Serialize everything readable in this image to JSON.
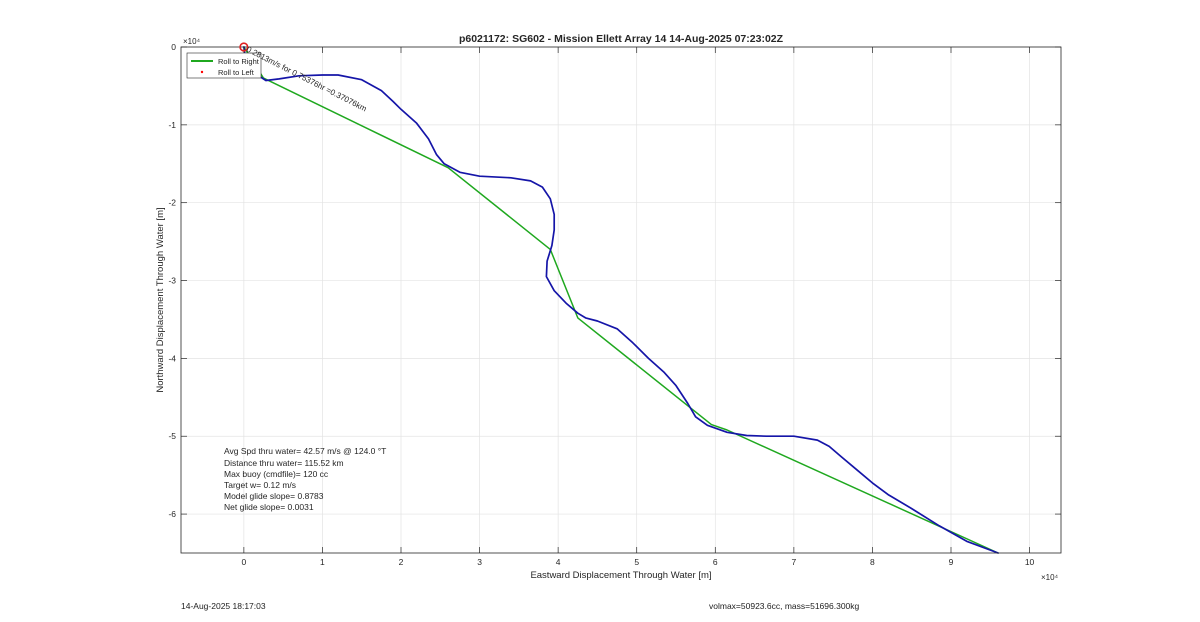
{
  "chart_data": {
    "type": "line",
    "title": "p6021172: SG602 - Mission Ellett Array 14 14-Aug-2025 07:23:02Z",
    "xlabel": "Eastward Displacement Through Water [m]",
    "ylabel": "Northward Displacement Through Water [m]",
    "x_exponent_label": "×10⁴",
    "y_exponent_label": "×10⁴",
    "xlim": [
      -8000,
      104000
    ],
    "ylim": [
      -65000,
      0
    ],
    "x_ticks": [
      0,
      10000,
      20000,
      30000,
      40000,
      50000,
      60000,
      70000,
      80000,
      90000,
      100000
    ],
    "x_tick_labels": [
      "0",
      "1",
      "2",
      "3",
      "4",
      "5",
      "6",
      "7",
      "8",
      "9",
      "10"
    ],
    "y_ticks": [
      0,
      -10000,
      -20000,
      -30000,
      -40000,
      -50000,
      -60000
    ],
    "y_tick_labels": [
      "0",
      "-1",
      "-2",
      "-3",
      "-4",
      "-5",
      "-6"
    ],
    "grid": true,
    "legend_placement": "top-left",
    "legend": [
      {
        "label": "Roll to Right",
        "color": "#1fa81f",
        "style": "line"
      },
      {
        "label": "Roll to Left",
        "color": "#ff0000",
        "style": "dot"
      }
    ],
    "series": [
      {
        "name": "Roll to Right",
        "color": "#1fa81f",
        "points": [
          [
            0,
            0
          ],
          [
            2500,
            -4000
          ],
          [
            26000,
            -15500
          ],
          [
            39000,
            -26000
          ],
          [
            42500,
            -34800
          ],
          [
            59500,
            -48500
          ],
          [
            61500,
            -49200
          ],
          [
            96000,
            -65000
          ]
        ]
      },
      {
        "color": "#1515a8",
        "points": [
          [
            0,
            0
          ],
          [
            200,
            -1500
          ],
          [
            1000,
            -3100
          ],
          [
            2800,
            -4300
          ],
          [
            4500,
            -4100
          ],
          [
            7000,
            -3700
          ],
          [
            10000,
            -3600
          ],
          [
            12000,
            -3600
          ],
          [
            15000,
            -4200
          ],
          [
            17500,
            -5600
          ],
          [
            19000,
            -7000
          ],
          [
            20000,
            -8000
          ],
          [
            22000,
            -9800
          ],
          [
            23500,
            -11800
          ],
          [
            24500,
            -13800
          ],
          [
            25500,
            -15000
          ],
          [
            27500,
            -16100
          ],
          [
            30000,
            -16600
          ],
          [
            34000,
            -16800
          ],
          [
            36500,
            -17200
          ],
          [
            38000,
            -18000
          ],
          [
            39000,
            -19500
          ],
          [
            39500,
            -21500
          ],
          [
            39500,
            -23500
          ],
          [
            39200,
            -25500
          ],
          [
            38600,
            -27500
          ],
          [
            38500,
            -29500
          ],
          [
            39500,
            -31300
          ],
          [
            41000,
            -32900
          ],
          [
            42500,
            -34200
          ],
          [
            43500,
            -34800
          ],
          [
            45000,
            -35200
          ],
          [
            47500,
            -36200
          ],
          [
            49500,
            -38000
          ],
          [
            51500,
            -40000
          ],
          [
            53500,
            -41800
          ],
          [
            55000,
            -43500
          ],
          [
            56500,
            -45800
          ],
          [
            57500,
            -47500
          ],
          [
            59000,
            -48600
          ],
          [
            61500,
            -49500
          ],
          [
            64000,
            -49900
          ],
          [
            66500,
            -50000
          ],
          [
            70000,
            -50000
          ],
          [
            73000,
            -50500
          ],
          [
            74500,
            -51300
          ],
          [
            76000,
            -52600
          ],
          [
            78000,
            -54300
          ],
          [
            80000,
            -56000
          ],
          [
            82000,
            -57500
          ],
          [
            85000,
            -59300
          ],
          [
            88500,
            -61500
          ],
          [
            92000,
            -63500
          ],
          [
            96000,
            -65000
          ]
        ]
      }
    ],
    "start_marker": {
      "x": 0,
      "y": 0,
      "color": "#e02020"
    },
    "annotation": {
      "text": "0.2813m/s for 0.75376hr =0.37076km",
      "x": 0,
      "y": 0,
      "rotation_deg": 27
    },
    "stats_lines": [
      "Avg Spd thru water= 42.57 m/s @ 124.0 °T",
      "Distance thru water= 115.52 km",
      "Max buoy (cmdfile)= 120 cc",
      "Target w= 0.12 m/s",
      "Model glide slope= 0.8783",
      "Net glide slope= 0.0031"
    ]
  },
  "footer": {
    "timestamp": "14-Aug-2025 18:17:03",
    "volmax_mass": "volmax=50923.6cc, mass=51696.300kg"
  },
  "colors": {
    "axis": "#262626",
    "grid": "#e3e3e3",
    "green": "#1fa81f",
    "blue": "#1515a8",
    "red": "#e02020"
  }
}
